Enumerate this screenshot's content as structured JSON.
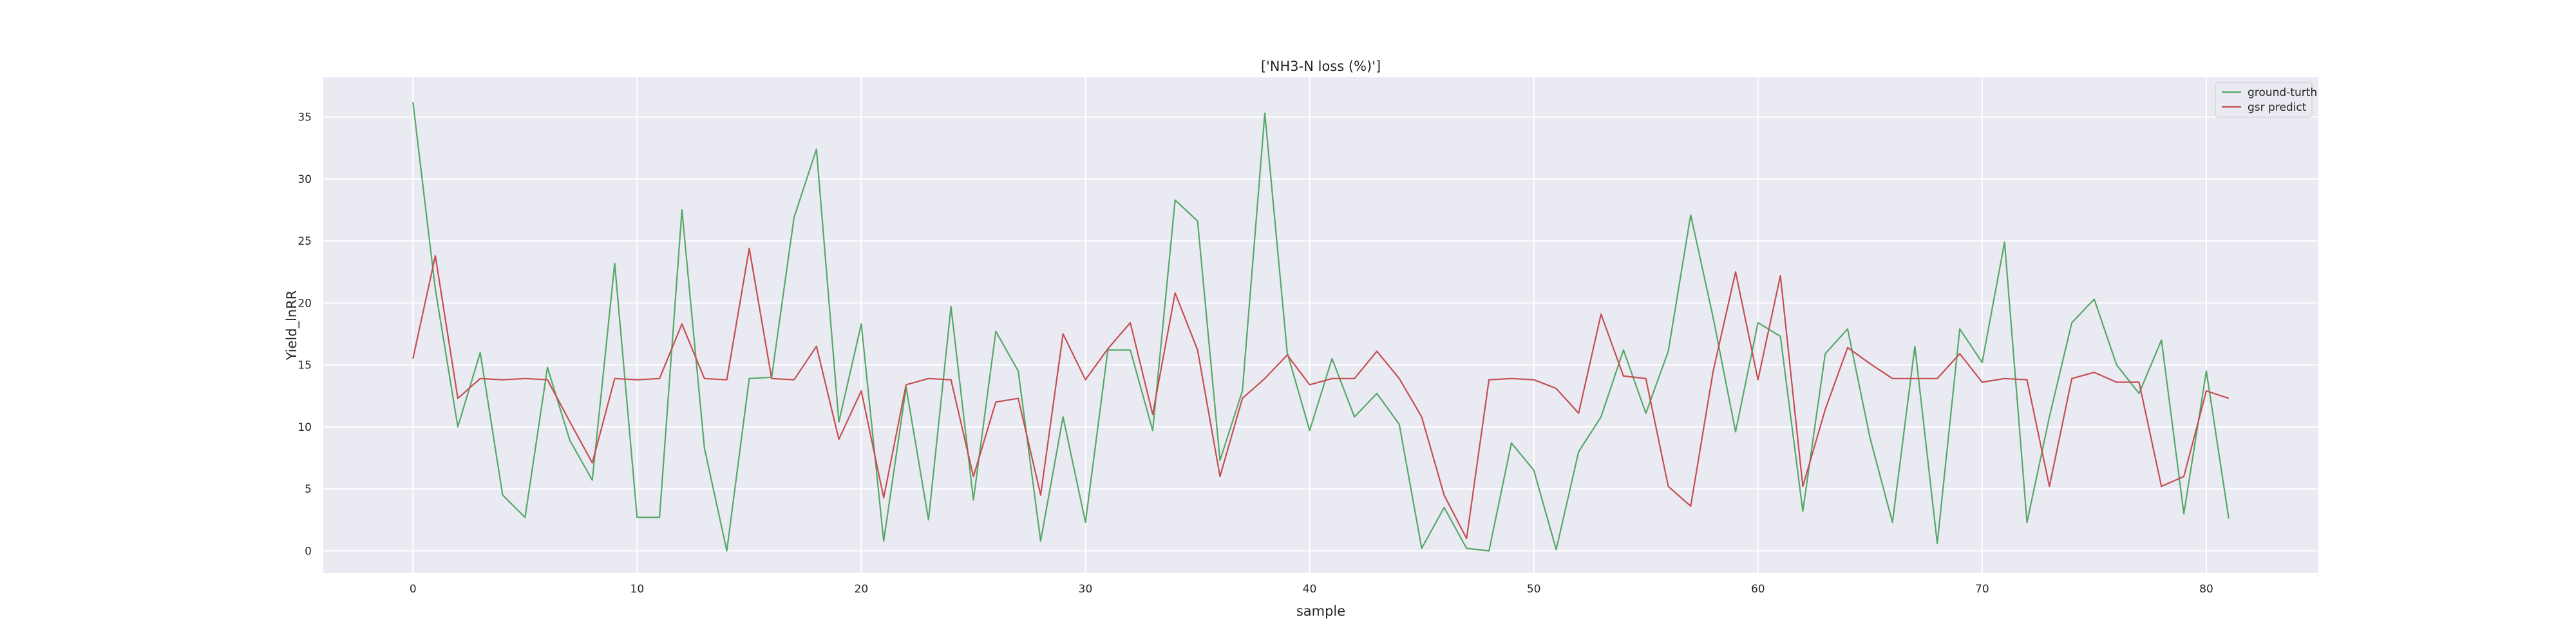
{
  "chart_data": {
    "type": "line",
    "title": "['NH3-N loss (%)']",
    "xlabel": "sample",
    "ylabel": "Yield_lnRR",
    "xlim": [
      -4,
      85
    ],
    "ylim": [
      -1.8,
      38.2
    ],
    "xticks": [
      0,
      10,
      20,
      30,
      40,
      50,
      60,
      70,
      80
    ],
    "yticks": [
      0,
      5,
      10,
      15,
      20,
      25,
      30,
      35
    ],
    "grid": true,
    "legend_position": "top-right",
    "x": [
      0,
      1,
      2,
      3,
      4,
      5,
      6,
      7,
      8,
      9,
      10,
      11,
      12,
      13,
      14,
      15,
      16,
      17,
      18,
      19,
      20,
      21,
      22,
      23,
      24,
      25,
      26,
      27,
      28,
      29,
      30,
      31,
      32,
      33,
      34,
      35,
      36,
      37,
      38,
      39,
      40,
      41,
      42,
      43,
      44,
      45,
      46,
      47,
      48,
      49,
      50,
      51,
      52,
      53,
      54,
      55,
      56,
      57,
      58,
      59,
      60,
      61,
      62,
      63,
      64,
      65,
      66,
      67,
      68,
      69,
      70,
      71,
      72,
      73,
      74,
      75,
      76,
      77,
      78,
      79,
      80,
      81
    ],
    "series": [
      {
        "name": "ground-turth",
        "color": "#55a868",
        "values": [
          36.2,
          21.1,
          10.0,
          16.0,
          4.5,
          2.7,
          14.8,
          8.9,
          5.7,
          23.2,
          2.7,
          2.7,
          27.5,
          8.3,
          0.0,
          13.9,
          14.0,
          26.9,
          32.4,
          10.4,
          18.3,
          0.8,
          13.2,
          2.5,
          19.7,
          4.1,
          17.7,
          14.5,
          0.8,
          10.8,
          2.3,
          16.2,
          16.2,
          9.7,
          28.3,
          26.6,
          7.3,
          12.9,
          35.3,
          16.0,
          9.7,
          15.5,
          10.8,
          12.7,
          10.2,
          0.2,
          3.5,
          0.2,
          0.0,
          8.7,
          6.5,
          0.1,
          8.0,
          10.8,
          16.2,
          11.1,
          16.1,
          27.1,
          18.8,
          9.6,
          18.4,
          17.3,
          3.2,
          15.9,
          17.9,
          9.1,
          2.3,
          16.5,
          0.6,
          17.9,
          15.2,
          24.9,
          2.3,
          10.8,
          18.4,
          20.3,
          15.0,
          12.7,
          17.0,
          3.0,
          14.5,
          2.6
        ]
      },
      {
        "name": "gsr predict",
        "color": "#c44e52",
        "values": [
          15.5,
          23.8,
          12.3,
          13.9,
          13.8,
          13.9,
          13.8,
          10.4,
          7.1,
          13.9,
          13.8,
          13.9,
          18.3,
          13.9,
          13.8,
          24.4,
          13.9,
          13.8,
          16.5,
          9.0,
          12.9,
          4.3,
          13.4,
          13.9,
          13.8,
          6.0,
          12.0,
          12.3,
          4.5,
          17.5,
          13.8,
          16.3,
          18.4,
          11.0,
          20.8,
          16.2,
          6.0,
          12.3,
          13.9,
          15.8,
          13.4,
          13.9,
          13.9,
          16.1,
          13.9,
          10.8,
          4.5,
          1.0,
          13.8,
          13.9,
          13.8,
          13.1,
          11.1,
          19.1,
          14.1,
          13.9,
          5.2,
          3.6,
          14.5,
          22.5,
          13.8,
          22.2,
          5.2,
          11.4,
          16.4,
          15.1,
          13.9,
          13.9,
          13.9,
          15.9,
          13.6,
          13.9,
          13.8,
          5.2,
          13.9,
          14.4,
          13.6,
          13.6,
          5.2,
          6.0,
          12.9,
          12.3
        ]
      }
    ]
  }
}
